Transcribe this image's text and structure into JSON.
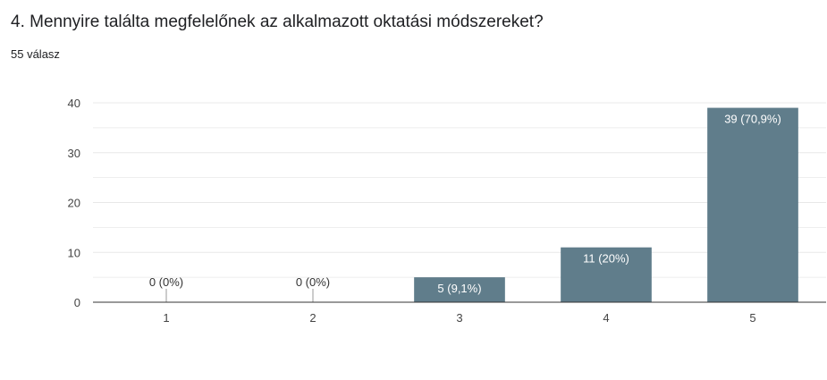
{
  "question": {
    "title": "4. Mennyire találta megfelelőnek az alkalmazott oktatási módszereket?",
    "responses": "55 válasz"
  },
  "colors": {
    "bar": "#607d8b",
    "gridline": "#e8e8e8",
    "axis": "#333333",
    "label_on_bar": "#ffffff",
    "label_off_bar": "#333333"
  },
  "chart_data": {
    "type": "bar",
    "categories": [
      "1",
      "2",
      "3",
      "4",
      "5"
    ],
    "values": [
      0,
      0,
      5,
      11,
      39
    ],
    "data_labels": [
      "0 (0%)",
      "0 (0%)",
      "5 (9,1%)",
      "11 (20%)",
      "39 (70,9%)"
    ],
    "ylim": [
      0,
      40
    ],
    "yticks": [
      0,
      10,
      20,
      30,
      40
    ],
    "grid": true,
    "title": "",
    "xlabel": "",
    "ylabel": ""
  }
}
